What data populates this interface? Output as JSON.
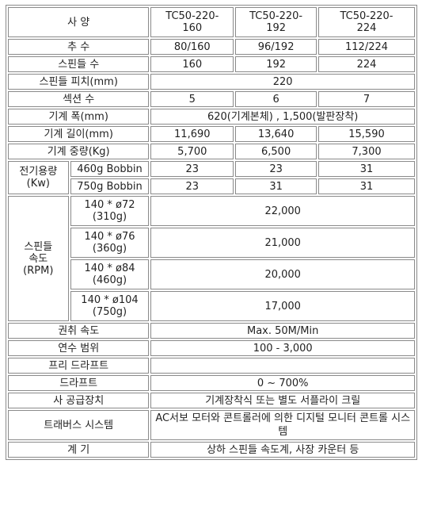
{
  "header": {
    "spec_label": "사 양",
    "models": [
      {
        "line1": "TC50-220-",
        "line2": "160"
      },
      {
        "line1": "TC50-220-",
        "line2": "192"
      },
      {
        "line1": "TC50-220-",
        "line2": "224"
      }
    ]
  },
  "rows": {
    "spindle_count": {
      "label": "추 수",
      "values": [
        "80/160",
        "96/192",
        "112/224"
      ]
    },
    "spindle_number": {
      "label": "스핀들 수",
      "values": [
        "160",
        "192",
        "224"
      ]
    },
    "spindle_pitch": {
      "label": "스핀들 피치(mm)",
      "value": "220"
    },
    "section_count": {
      "label": "섹션 수",
      "values": [
        "5",
        "6",
        "7"
      ]
    },
    "machine_width": {
      "label": "기계 폭(mm)",
      "value": "620(기계본체) , 1,500(발판장착)"
    },
    "machine_length": {
      "label": "기계 길이(mm)",
      "values": [
        "11,690",
        "13,640",
        "15,590"
      ]
    },
    "machine_weight": {
      "label": "기계 중량(Kg)",
      "values": [
        "5,700",
        "6,500",
        "7,300"
      ]
    },
    "power": {
      "label_line1": "전기용량",
      "label_line2": "(Kw)",
      "sub": [
        {
          "label": "460g Bobbin",
          "values": [
            "23",
            "23",
            "31"
          ]
        },
        {
          "label": "750g Bobbin",
          "values": [
            "23",
            "31",
            "31"
          ]
        }
      ]
    },
    "spindle_speed": {
      "label_line1": "스핀들",
      "label_line2": "속도",
      "label_line3": "(RPM)",
      "sub": [
        {
          "line1": "140 * ø72",
          "line2": "(310g)",
          "value": "22,000"
        },
        {
          "line1": "140 * ø76",
          "line2": "(360g)",
          "value": "21,000"
        },
        {
          "line1": "140 * ø84",
          "line2": "(460g)",
          "value": "20,000"
        },
        {
          "line1": "140 * ø104",
          "line2": "(750g)",
          "value": "17,000"
        }
      ]
    },
    "winding_speed": {
      "label": "권취 속도",
      "value": "Max. 50M/Min"
    },
    "yarn_count_range": {
      "label": "연수 범위",
      "value": "100 - 3,000"
    },
    "pre_draft": {
      "label": "프리 드라프트",
      "value": ""
    },
    "draft": {
      "label": "드라프트",
      "value": "0 ~ 700%"
    },
    "yarn_feed": {
      "label": "사 공급장치",
      "value": "기계장착식 또는 별도 서플라이 크릴"
    },
    "traverse": {
      "label": "트래버스 시스템",
      "value": "AC서보 모터와 콘트롤러에 의한 디지털 모니터 콘트롤 시스템"
    },
    "gauge": {
      "label": "계 기",
      "value": "상하 스핀들 속도계, 사장 카운터 등"
    }
  }
}
